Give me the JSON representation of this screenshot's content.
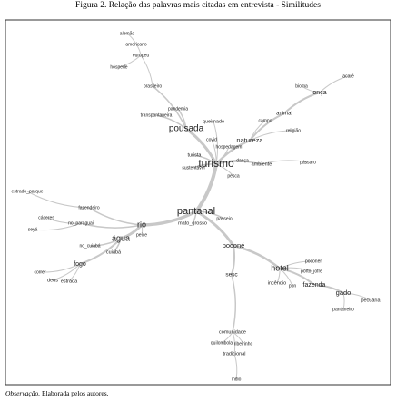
{
  "header": {
    "title": "Figura 2. Relação das palavras mais citadas em entrevista - Similitudes"
  },
  "nodes": [
    {
      "label": "alemão"
    },
    {
      "label": "americano"
    },
    {
      "label": "europeu"
    },
    {
      "label": "hóspede"
    },
    {
      "label": "brasileiro"
    },
    {
      "label": "pandemia"
    },
    {
      "label": "transpantaneira"
    },
    {
      "label": "pousada"
    },
    {
      "label": "queimado"
    },
    {
      "label": "covid"
    },
    {
      "label": "hospedagem"
    },
    {
      "label": "turista"
    },
    {
      "label": "sustentável"
    },
    {
      "label": "turismo"
    },
    {
      "label": "dança"
    },
    {
      "label": "ambiente"
    },
    {
      "label": "pesca"
    },
    {
      "label": "natureza"
    },
    {
      "label": "animal"
    },
    {
      "label": "campo"
    },
    {
      "label": "bioma"
    },
    {
      "label": "onça"
    },
    {
      "label": "jacaré"
    },
    {
      "label": "religião"
    },
    {
      "label": "pássaro"
    },
    {
      "label": "estrado_parque"
    },
    {
      "label": "fazendeiro"
    },
    {
      "label": "cáceres"
    },
    {
      "label": "no_paraguai"
    },
    {
      "label": "seyá"
    },
    {
      "label": "rio"
    },
    {
      "label": "peixe"
    },
    {
      "label": "água"
    },
    {
      "label": "no_cuiabá"
    },
    {
      "label": "cuiabá"
    },
    {
      "label": "pantanal"
    },
    {
      "label": "mato_grosso"
    },
    {
      "label": "passeio"
    },
    {
      "label": "poconé"
    },
    {
      "label": "fogo"
    },
    {
      "label": "correr"
    },
    {
      "label": "deus"
    },
    {
      "label": "estrada"
    },
    {
      "label": "sesc"
    },
    {
      "label": "hotel"
    },
    {
      "label": "poconér"
    },
    {
      "label": "porto_jofre"
    },
    {
      "label": "incêndio"
    },
    {
      "label": "ppn"
    },
    {
      "label": "fazenda"
    },
    {
      "label": "gado"
    },
    {
      "label": "pecuária"
    },
    {
      "label": "pantaneiro"
    },
    {
      "label": "comunidade"
    },
    {
      "label": "quilombola"
    },
    {
      "label": "ribeirinho"
    },
    {
      "label": "tradicional"
    },
    {
      "label": "índio"
    }
  ],
  "footer": {
    "label": "Observação.",
    "text": "Elaborada pelos autores."
  }
}
